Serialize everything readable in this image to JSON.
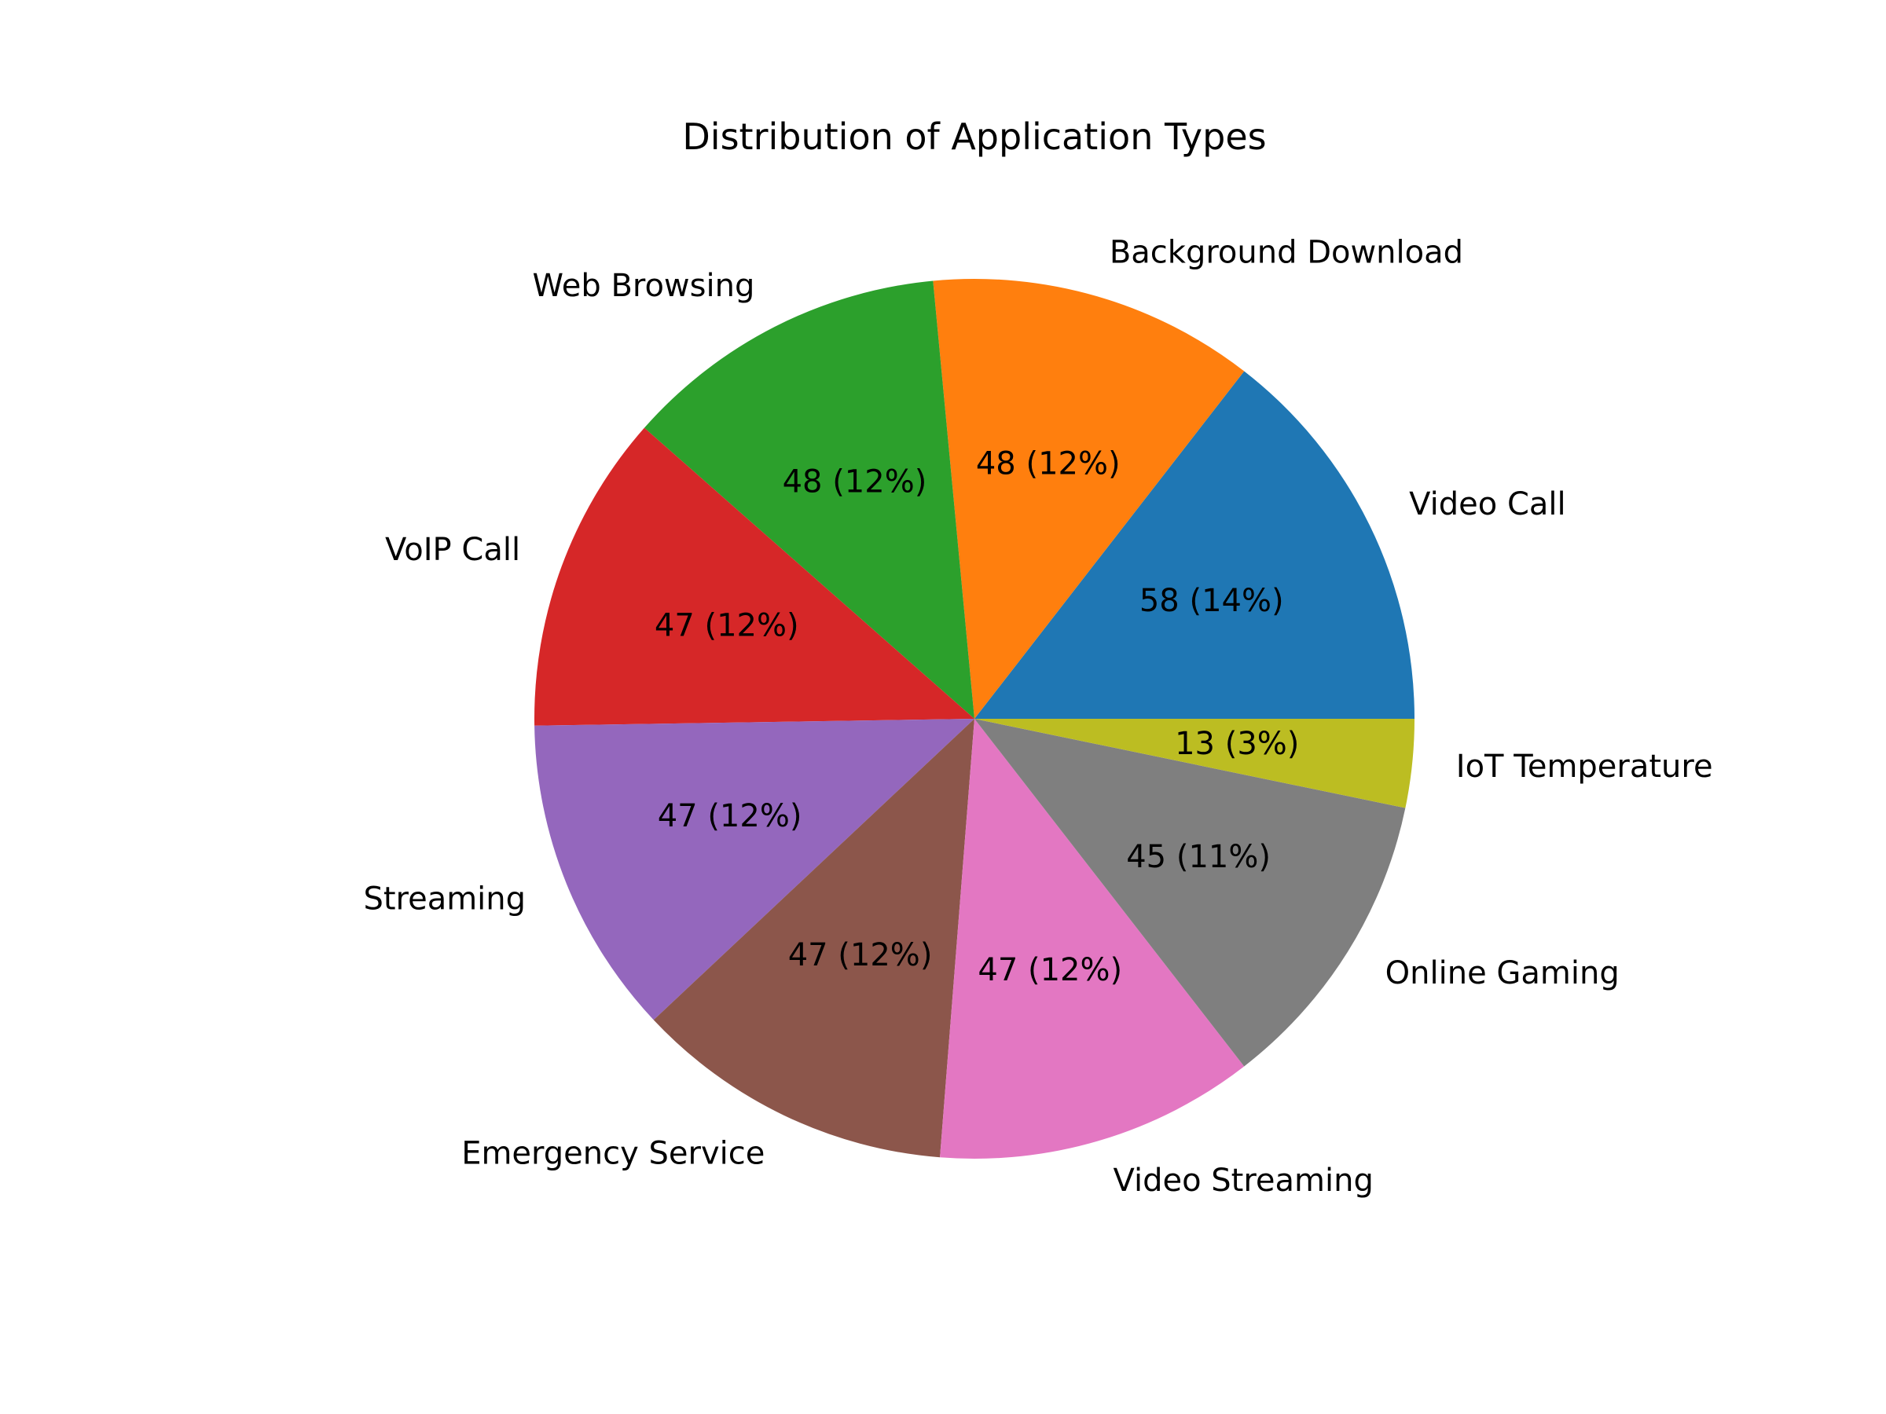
{
  "chart_data": {
    "type": "pie",
    "title": "Distribution of Application Types",
    "categories": [
      "Video Call",
      "Background Download",
      "Web Browsing",
      "VoIP Call",
      "Streaming",
      "Emergency Service",
      "Video Streaming",
      "Online Gaming",
      "IoT Temperature"
    ],
    "values": [
      58,
      48,
      48,
      47,
      47,
      47,
      47,
      45,
      13
    ],
    "percent_labels": [
      "58 (14%)",
      "48 (12%)",
      "48 (12%)",
      "47 (12%)",
      "47 (12%)",
      "47 (12%)",
      "47 (12%)",
      "45 (11%)",
      "13 (3%)"
    ],
    "colors": [
      "#1f77b4",
      "#ff7f0e",
      "#2ca02c",
      "#d62728",
      "#9467bd",
      "#8c564b",
      "#e377c2",
      "#7f7f7f",
      "#bcbd22"
    ],
    "start_angle_deg": 0,
    "direction": "counterclockwise",
    "legend": "none"
  }
}
